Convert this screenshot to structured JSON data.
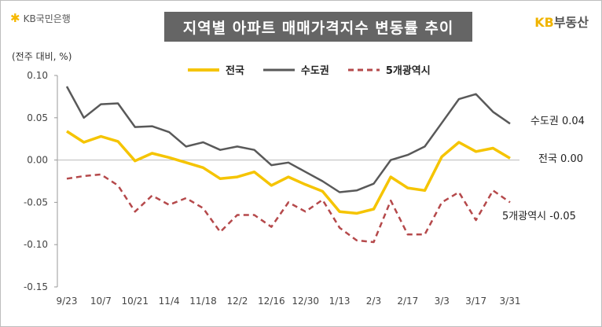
{
  "header": {
    "logo_text": "KB국민은행",
    "title": "지역별 아파트 매매가격지수 변동률 추이",
    "brand_kb": "KB",
    "brand_rest": "부동산"
  },
  "colors": {
    "national": "#f5c400",
    "capital": "#595959",
    "metro": "#b5494b"
  },
  "chart_data": {
    "type": "line",
    "title": "지역별 아파트 매매가격지수 변동률 추이",
    "ylabel": "(전주 대비, %)",
    "ylim": [
      -0.15,
      0.1
    ],
    "yticks": [
      0.1,
      0.05,
      0.0,
      -0.05,
      -0.1,
      -0.15
    ],
    "ytick_labels": [
      "0.10",
      "0.05",
      "0.00",
      "-0.05",
      "-0.10",
      "-0.15"
    ],
    "xtick_labels": [
      "9/23",
      "10/7",
      "10/21",
      "11/4",
      "11/18",
      "12/2",
      "12/16",
      "12/30",
      "1/13",
      "2/3",
      "2/17",
      "3/3",
      "3/17",
      "3/31"
    ],
    "series": [
      {
        "name": "전국",
        "style": "solid",
        "values": [
          0.034,
          0.021,
          0.028,
          0.022,
          -0.001,
          0.008,
          0.003,
          -0.003,
          -0.009,
          -0.022,
          -0.02,
          -0.014,
          -0.03,
          -0.02,
          -0.029,
          -0.037,
          -0.061,
          -0.063,
          -0.058,
          -0.02,
          -0.033,
          -0.036,
          0.004,
          0.021,
          0.01,
          0.014,
          0.002
        ],
        "end_label": "전국 0.00"
      },
      {
        "name": "수도권",
        "style": "solid",
        "values": [
          0.087,
          0.05,
          0.066,
          0.067,
          0.039,
          0.04,
          0.033,
          0.016,
          0.021,
          0.012,
          0.016,
          0.012,
          -0.006,
          -0.003,
          -0.014,
          -0.025,
          -0.038,
          -0.036,
          -0.028,
          0.0,
          0.006,
          0.016,
          0.044,
          0.072,
          0.078,
          0.057,
          0.043
        ],
        "end_label": "수도권 0.04"
      },
      {
        "name": "5개광역시",
        "style": "dashed",
        "values": [
          -0.022,
          -0.019,
          -0.017,
          -0.03,
          -0.061,
          -0.042,
          -0.053,
          -0.045,
          -0.057,
          -0.085,
          -0.065,
          -0.065,
          -0.079,
          -0.05,
          -0.061,
          -0.047,
          -0.08,
          -0.095,
          -0.097,
          -0.048,
          -0.088,
          -0.088,
          -0.05,
          -0.038,
          -0.071,
          -0.036,
          -0.05
        ],
        "end_label": "5개광역시 -0.05"
      }
    ]
  }
}
